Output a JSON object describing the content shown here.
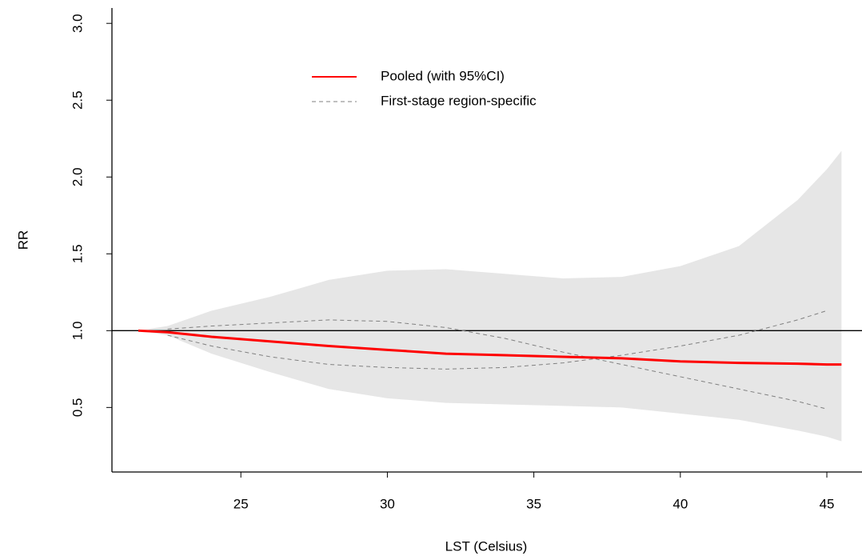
{
  "chart_data": {
    "type": "line",
    "xlabel": "LST (Celsius)",
    "ylabel": "RR",
    "x": [
      21.5,
      22.5,
      24,
      26,
      28,
      30,
      32,
      34,
      36,
      38,
      40,
      42,
      44,
      45,
      45.5
    ],
    "series": [
      {
        "name": "Pooled (with 95%CI)",
        "color": "#ff0000",
        "dash": false,
        "width": 3,
        "values": [
          1.0,
          0.99,
          0.96,
          0.93,
          0.9,
          0.875,
          0.85,
          0.84,
          0.83,
          0.82,
          0.8,
          0.79,
          0.785,
          0.78,
          0.78
        ],
        "ci_upper": [
          1.0,
          1.03,
          1.13,
          1.22,
          1.33,
          1.39,
          1.4,
          1.37,
          1.34,
          1.35,
          1.42,
          1.55,
          1.85,
          2.05,
          2.17
        ],
        "ci_lower": [
          1.0,
          0.97,
          0.85,
          0.73,
          0.62,
          0.56,
          0.53,
          0.52,
          0.51,
          0.5,
          0.46,
          0.42,
          0.35,
          0.31,
          0.28
        ],
        "ci_color": "#e6e6e6"
      },
      {
        "name": "First-stage region-specific",
        "color": "#808080",
        "dash": true,
        "width": 1,
        "values": [
          null,
          1.01,
          1.03,
          1.05,
          1.07,
          1.06,
          1.02,
          0.95,
          0.86,
          0.78,
          0.7,
          0.62,
          0.54,
          0.49,
          null
        ]
      },
      {
        "color": "#808080",
        "dash": true,
        "width": 1,
        "values": [
          null,
          0.97,
          0.9,
          0.83,
          0.78,
          0.76,
          0.75,
          0.76,
          0.79,
          0.84,
          0.9,
          0.97,
          1.07,
          1.13,
          null
        ]
      }
    ],
    "hline": 1,
    "xlim": [
      20.6,
      46.2
    ],
    "xticks": [
      25,
      30,
      35,
      40,
      45
    ],
    "ylim": [
      0.08,
      3.1
    ],
    "yticks": [
      0.5,
      {
        "value": 1,
        "label": "1.0"
      },
      1.5,
      {
        "value": 2,
        "label": "2.0"
      },
      2.5,
      {
        "value": 3,
        "label": "3.0"
      }
    ],
    "grid": false,
    "legend": "top"
  }
}
